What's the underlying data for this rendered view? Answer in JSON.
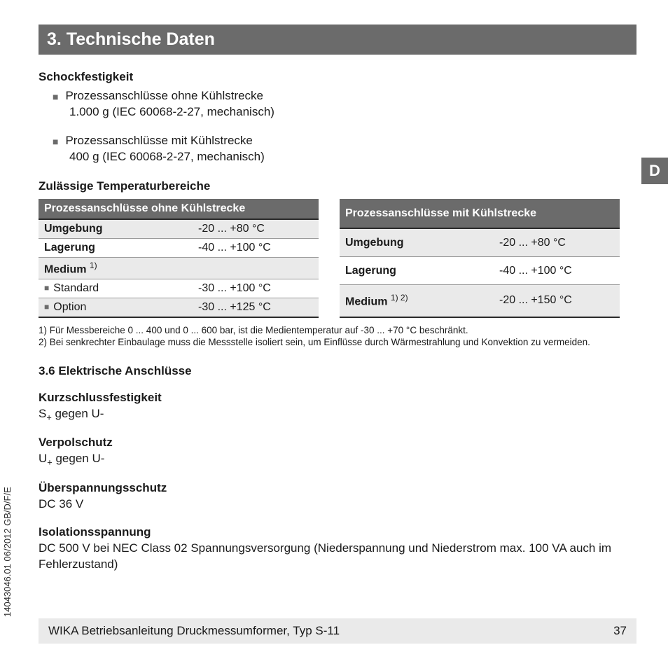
{
  "header": {
    "section_title": "3. Technische Daten"
  },
  "language_tab": "D",
  "shock": {
    "heading": "Schockfestigkeit",
    "items": [
      {
        "line1": "Prozessanschlüsse ohne Kühlstrecke",
        "line2": "1.000 g (IEC 60068-2-27, mechanisch)"
      },
      {
        "line1": "Prozessanschlüsse mit Kühlstrecke",
        "line2": "400 g (IEC 60068-2-27, mechanisch)"
      }
    ]
  },
  "temp": {
    "heading": "Zulässige Temperaturbereiche",
    "left": {
      "title": "Prozessanschlüsse ohne Kühlstrecke",
      "rows": [
        {
          "label": "Umgebung",
          "value": "-20 ... +80 °C",
          "shade": true,
          "bullet": false,
          "bold": true,
          "sup": ""
        },
        {
          "label": "Lagerung",
          "value": "-40 ... +100 °C",
          "shade": false,
          "bullet": false,
          "bold": true,
          "sup": ""
        },
        {
          "label": "Medium",
          "value": "",
          "shade": true,
          "bullet": false,
          "bold": true,
          "sup": "1)"
        },
        {
          "label": "Standard",
          "value": "-30 ... +100 °C",
          "shade": false,
          "bullet": true,
          "bold": false,
          "sup": ""
        },
        {
          "label": "Option",
          "value": "-30 ... +125 °C",
          "shade": true,
          "bullet": true,
          "bold": false,
          "sup": ""
        }
      ]
    },
    "right": {
      "title": "Prozessanschlüsse mit Kühlstrecke",
      "rows": [
        {
          "label": "Umgebung",
          "value": "-20 ... +80 °C",
          "shade": true,
          "bullet": false,
          "bold": true,
          "sup": ""
        },
        {
          "label": "Lagerung",
          "value": "-40 ... +100 °C",
          "shade": false,
          "bullet": false,
          "bold": true,
          "sup": ""
        },
        {
          "label": "Medium",
          "value": "-20 ... +150 °C",
          "shade": true,
          "bullet": false,
          "bold": true,
          "sup": "1) 2)"
        }
      ]
    }
  },
  "footnotes": [
    "1) Für Messbereiche 0 ... 400 und 0 ... 600 bar, ist die Medientemperatur auf -30 ... +70 °C beschränkt.",
    "2) Bei senkrechter Einbaulage muss die Messstelle isoliert sein, um Einflüsse durch Wärmestrahlung und Konvektion zu vermeiden."
  ],
  "sec36": {
    "heading": "3.6 Elektrische Anschlüsse",
    "items": [
      {
        "label": "Kurzschlussfestigkeit",
        "value_html": "S<sub>+</sub> gegen U-"
      },
      {
        "label": "Verpolschutz",
        "value_html": "U<sub>+</sub> gegen U-"
      },
      {
        "label": "Überspannungsschutz",
        "value_html": "DC 36 V"
      },
      {
        "label": "Isolationsspannung",
        "value_html": "DC 500 V bei NEC Class 02 Spannungsversorgung (Niederspannung und Niederstrom max. 100 VA auch im Fehlerzustand)"
      }
    ]
  },
  "side_text": "14043046.01 06/2012 GB/D/F/E",
  "footer": {
    "text": "WIKA Betriebsanleitung Druckmessumformer, Typ S-11",
    "page": "37"
  },
  "colors": {
    "header_bg": "#6b6b6b",
    "shade_bg": "#eaeaea",
    "text": "#1a1a1a",
    "rule_dark": "#2a2a2a",
    "rule_light": "#9a9a9a"
  }
}
